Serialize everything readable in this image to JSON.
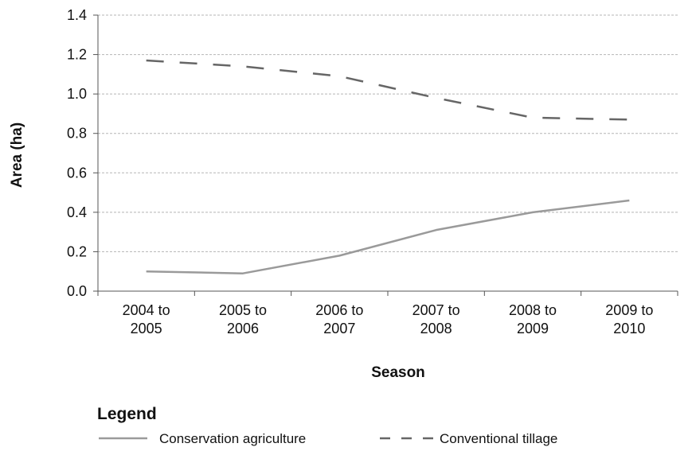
{
  "chart_data": {
    "type": "line",
    "categories": [
      [
        "2004 to",
        "2005"
      ],
      [
        "2005 to",
        "2006"
      ],
      [
        "2006 to",
        "2007"
      ],
      [
        "2007 to",
        "2008"
      ],
      [
        "2008 to",
        "2009"
      ],
      [
        "2009 to",
        "2010"
      ]
    ],
    "series": [
      {
        "name": "Conservation agriculture",
        "values": [
          0.1,
          0.09,
          0.18,
          0.31,
          0.4,
          0.46
        ],
        "color": "#9a9a9a",
        "style": "solid"
      },
      {
        "name": "Conventional tillage",
        "values": [
          1.17,
          1.14,
          1.09,
          0.98,
          0.88,
          0.87
        ],
        "color": "#666666",
        "style": "dashed"
      }
    ],
    "xlabel": "Season",
    "ylabel": "Area (ha)",
    "ylim": [
      0,
      1.4
    ],
    "yticks": [
      "0.0",
      "0.2",
      "0.4",
      "0.6",
      "0.8",
      "1.0",
      "1.2",
      "1.4"
    ],
    "grid": "horizontal dashed",
    "legend": {
      "title": "Legend",
      "placement": "bottom"
    }
  }
}
